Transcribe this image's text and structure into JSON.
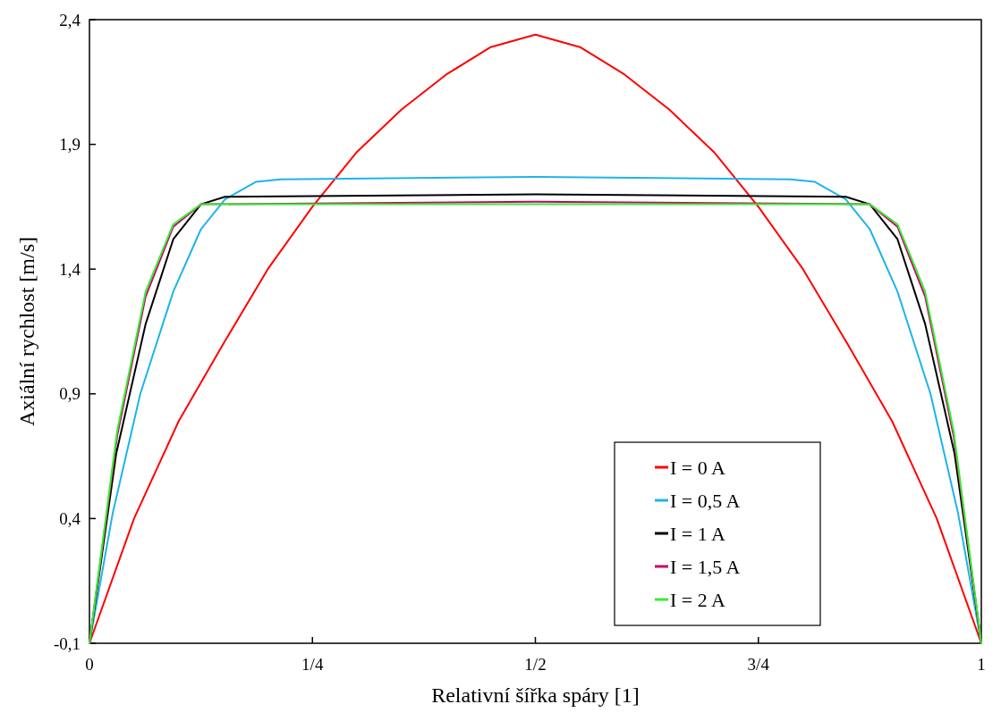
{
  "chart_data": {
    "type": "line",
    "xlabel": "Relativní šířka spáry   [1]",
    "ylabel": "Axiální rychlost   [m/s]",
    "xlim": [
      0,
      1
    ],
    "xticks": [
      0,
      {
        "value": 0.25,
        "label": "1/4"
      },
      {
        "value": 0.5,
        "label": "1/2"
      },
      {
        "value": 0.75,
        "label": "3/4"
      },
      1
    ],
    "ylim": [
      -0.1,
      2.4
    ],
    "yticks": [
      {
        "value": -0.1,
        "label": "-0,1"
      },
      {
        "value": 0.4,
        "label": "0,4"
      },
      {
        "value": 0.9,
        "label": "0,9"
      },
      {
        "value": 1.4,
        "label": "1,4"
      },
      {
        "value": 1.9,
        "label": "1,9"
      },
      {
        "value": 2.4,
        "label": "2,4"
      }
    ],
    "grid": false,
    "legend": "bottom right",
    "marker": "none",
    "line_style": "solid",
    "series": [
      {
        "name": "I = 0 A",
        "color": "#ff0000",
        "x": [
          0,
          0.05,
          0.1,
          0.15,
          0.2,
          0.25,
          0.3,
          0.35,
          0.4,
          0.45,
          0.5,
          0.55,
          0.6,
          0.65,
          0.7,
          0.75,
          0.8,
          0.85,
          0.9,
          0.95,
          1
        ],
        "values": [
          -0.1,
          0.4,
          0.79,
          1.1,
          1.4,
          1.65,
          1.87,
          2.04,
          2.18,
          2.29,
          2.34,
          2.29,
          2.18,
          2.04,
          1.87,
          1.65,
          1.4,
          1.1,
          0.79,
          0.4,
          -0.1
        ]
      },
      {
        "name": "I = 0,5 A",
        "color": "#1eb4e8",
        "x": [
          0,
          0.026,
          0.057,
          0.094,
          0.125,
          0.152,
          0.187,
          0.214,
          0.5,
          0.786,
          0.813,
          0.848,
          0.875,
          0.906,
          0.943,
          0.974,
          1
        ],
        "values": [
          -0.1,
          0.42,
          0.9,
          1.31,
          1.56,
          1.68,
          1.75,
          1.76,
          1.77,
          1.76,
          1.75,
          1.68,
          1.56,
          1.31,
          0.9,
          0.42,
          -0.1
        ]
      },
      {
        "name": "I = 1 A",
        "color": "#000000",
        "x": [
          0,
          0.03,
          0.063,
          0.094,
          0.125,
          0.152,
          0.5,
          0.848,
          0.875,
          0.906,
          0.937,
          0.97,
          1
        ],
        "values": [
          -0.1,
          0.66,
          1.18,
          1.52,
          1.66,
          1.69,
          1.7,
          1.69,
          1.66,
          1.52,
          1.18,
          0.66,
          -0.1
        ]
      },
      {
        "name": "I = 1,5 A",
        "color": "#cc0066",
        "x": [
          0,
          0.031,
          0.063,
          0.094,
          0.125,
          0.5,
          0.875,
          0.906,
          0.937,
          0.969,
          1
        ],
        "values": [
          -0.1,
          0.73,
          1.29,
          1.57,
          1.66,
          1.67,
          1.66,
          1.57,
          1.29,
          0.73,
          -0.1
        ]
      },
      {
        "name": "I = 2 A",
        "color": "#33ee33",
        "x": [
          0,
          0.031,
          0.063,
          0.094,
          0.125,
          0.5,
          0.875,
          0.906,
          0.937,
          0.969,
          1
        ],
        "values": [
          -0.1,
          0.75,
          1.31,
          1.58,
          1.66,
          1.66,
          1.66,
          1.58,
          1.31,
          0.75,
          -0.1
        ]
      }
    ]
  }
}
